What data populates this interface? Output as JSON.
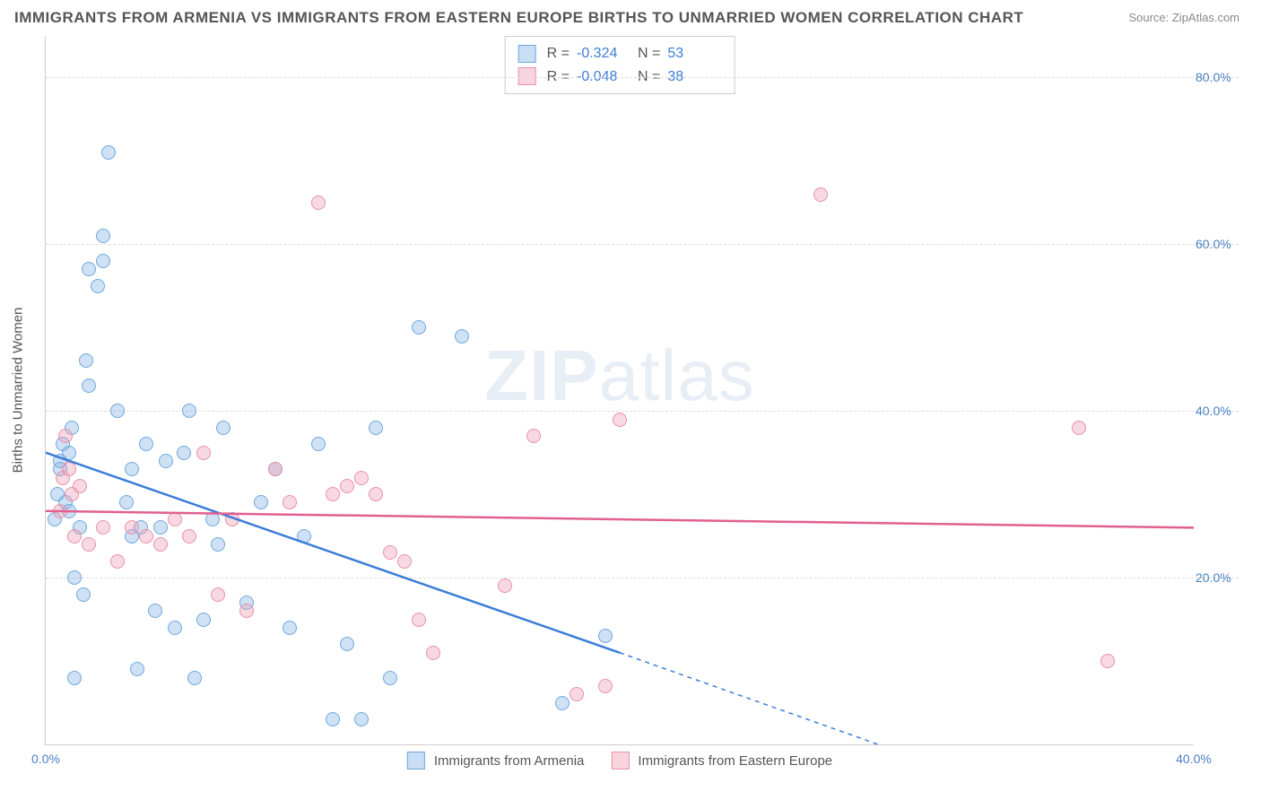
{
  "title": "IMMIGRANTS FROM ARMENIA VS IMMIGRANTS FROM EASTERN EUROPE BIRTHS TO UNMARRIED WOMEN CORRELATION CHART",
  "source_label": "Source: ZipAtlas.com",
  "ylabel": "Births to Unmarried Women",
  "watermark_bold": "ZIP",
  "watermark_rest": "atlas",
  "chart": {
    "type": "scatter",
    "xlim": [
      0,
      40
    ],
    "ylim": [
      0,
      85
    ],
    "xticks": [
      {
        "v": 0,
        "l": "0.0%"
      },
      {
        "v": 40,
        "l": "40.0%"
      }
    ],
    "yticks": [
      {
        "v": 20,
        "l": "20.0%"
      },
      {
        "v": 40,
        "l": "40.0%"
      },
      {
        "v": 60,
        "l": "60.0%"
      },
      {
        "v": 80,
        "l": "80.0%"
      }
    ],
    "grid_color": "#dddddd",
    "background_color": "#ffffff",
    "series": [
      {
        "name": "Immigrants from Armenia",
        "color_fill": "rgba(135,180,230,0.4)",
        "color_stroke": "#6fa8dc",
        "trend_color": "#3b7dd8",
        "r": -0.324,
        "n": 53,
        "trend": {
          "x1": 0,
          "y1": 35,
          "x2": 20,
          "y2": 11,
          "x_dash_to": 29,
          "y_dash_to": 0
        },
        "points": [
          [
            0.3,
            27
          ],
          [
            0.4,
            30
          ],
          [
            0.5,
            33
          ],
          [
            0.5,
            34
          ],
          [
            0.6,
            36
          ],
          [
            0.7,
            29
          ],
          [
            0.8,
            28
          ],
          [
            0.8,
            35
          ],
          [
            0.9,
            38
          ],
          [
            1.0,
            8
          ],
          [
            1.0,
            20
          ],
          [
            1.2,
            26
          ],
          [
            1.3,
            18
          ],
          [
            1.4,
            46
          ],
          [
            1.5,
            43
          ],
          [
            1.5,
            57
          ],
          [
            1.8,
            55
          ],
          [
            2.0,
            58
          ],
          [
            2.0,
            61
          ],
          [
            2.2,
            71
          ],
          [
            2.5,
            40
          ],
          [
            2.8,
            29
          ],
          [
            3.0,
            25
          ],
          [
            3.0,
            33
          ],
          [
            3.2,
            9
          ],
          [
            3.3,
            26
          ],
          [
            3.5,
            36
          ],
          [
            3.8,
            16
          ],
          [
            4.0,
            26
          ],
          [
            4.2,
            34
          ],
          [
            4.5,
            14
          ],
          [
            4.8,
            35
          ],
          [
            5.0,
            40
          ],
          [
            5.2,
            8
          ],
          [
            5.5,
            15
          ],
          [
            5.8,
            27
          ],
          [
            6.0,
            24
          ],
          [
            6.2,
            38
          ],
          [
            7.0,
            17
          ],
          [
            7.5,
            29
          ],
          [
            8.0,
            33
          ],
          [
            8.5,
            14
          ],
          [
            9.0,
            25
          ],
          [
            9.5,
            36
          ],
          [
            10.0,
            3
          ],
          [
            10.5,
            12
          ],
          [
            11.0,
            3
          ],
          [
            11.5,
            38
          ],
          [
            12.0,
            8
          ],
          [
            13.0,
            50
          ],
          [
            14.5,
            49
          ],
          [
            18.0,
            5
          ],
          [
            19.5,
            13
          ]
        ]
      },
      {
        "name": "Immigrants from Eastern Europe",
        "color_fill": "rgba(240,160,180,0.4)",
        "color_stroke": "#e890aa",
        "trend_color": "#e06090",
        "r": -0.048,
        "n": 38,
        "trend": {
          "x1": 0,
          "y1": 28,
          "x2": 40,
          "y2": 26
        },
        "points": [
          [
            0.5,
            28
          ],
          [
            0.6,
            32
          ],
          [
            0.7,
            37
          ],
          [
            0.8,
            33
          ],
          [
            0.9,
            30
          ],
          [
            1.0,
            25
          ],
          [
            1.2,
            31
          ],
          [
            1.5,
            24
          ],
          [
            2.0,
            26
          ],
          [
            2.5,
            22
          ],
          [
            3.0,
            26
          ],
          [
            3.5,
            25
          ],
          [
            4.0,
            24
          ],
          [
            4.5,
            27
          ],
          [
            5.0,
            25
          ],
          [
            5.5,
            35
          ],
          [
            6.0,
            18
          ],
          [
            6.5,
            27
          ],
          [
            7.0,
            16
          ],
          [
            8.0,
            33
          ],
          [
            8.5,
            29
          ],
          [
            9.5,
            65
          ],
          [
            10.0,
            30
          ],
          [
            10.5,
            31
          ],
          [
            11.0,
            32
          ],
          [
            11.5,
            30
          ],
          [
            12.0,
            23
          ],
          [
            12.5,
            22
          ],
          [
            13.0,
            15
          ],
          [
            13.5,
            11
          ],
          [
            16.0,
            19
          ],
          [
            17.0,
            37
          ],
          [
            18.5,
            6
          ],
          [
            19.5,
            7
          ],
          [
            20.0,
            39
          ],
          [
            27.0,
            66
          ],
          [
            36.0,
            38
          ],
          [
            37.0,
            10
          ]
        ]
      }
    ],
    "legend_top": {
      "r_label": "R =",
      "n_label": "N ="
    },
    "legend_bottom": [
      {
        "swatch": "blue",
        "label": "Immigrants from Armenia"
      },
      {
        "swatch": "pink",
        "label": "Immigrants from Eastern Europe"
      }
    ]
  }
}
